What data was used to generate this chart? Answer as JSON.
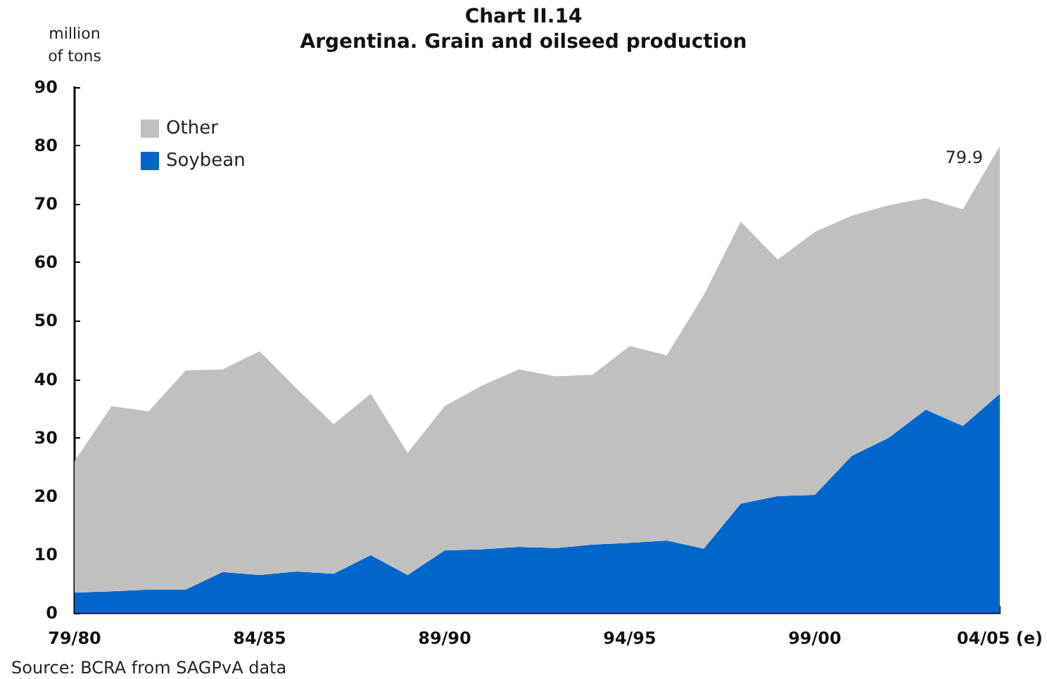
{
  "chart_data": {
    "type": "area",
    "title": "Chart II.14",
    "subtitle": "Argentina. Grain and oilseed production",
    "ylabel": "million\nof tons",
    "categories": [
      "79/80",
      null,
      null,
      null,
      null,
      "84/85",
      null,
      null,
      null,
      null,
      "89/90",
      null,
      null,
      null,
      null,
      "94/95",
      null,
      null,
      null,
      null,
      "99/00",
      null,
      null,
      null,
      null,
      "04/05 (e)"
    ],
    "stacked": true,
    "series": [
      {
        "name": "Soybean",
        "color": "#0066cc",
        "values": [
          3.5,
          3.7,
          4.0,
          4.0,
          7.0,
          6.5,
          7.1,
          6.7,
          9.9,
          6.5,
          10.7,
          10.9,
          11.3,
          11.1,
          11.7,
          12.0,
          12.4,
          11.0,
          18.7,
          20.0,
          20.2,
          26.9,
          30.0,
          34.8,
          32.0,
          37.5
        ]
      },
      {
        "name": "Other",
        "color": "#c0c0c0",
        "values": [
          22.5,
          31.7,
          30.5,
          37.5,
          34.7,
          38.3,
          31.3,
          25.6,
          27.6,
          20.9,
          24.7,
          28.0,
          30.4,
          29.4,
          29.1,
          33.7,
          31.7,
          43.4,
          48.3,
          40.5,
          45.0,
          41.1,
          39.8,
          36.2,
          37.1,
          42.4
        ]
      }
    ],
    "ylim": [
      0,
      90
    ],
    "yticks": [
      0,
      10,
      20,
      30,
      40,
      50,
      60,
      70,
      80,
      90
    ],
    "legend": "top left",
    "grid": false,
    "annotations": [
      {
        "text": "79.9",
        "x": "04/05 (e)",
        "y": 79.9
      },
      "Source: BCRA from SAGPvA data"
    ]
  }
}
